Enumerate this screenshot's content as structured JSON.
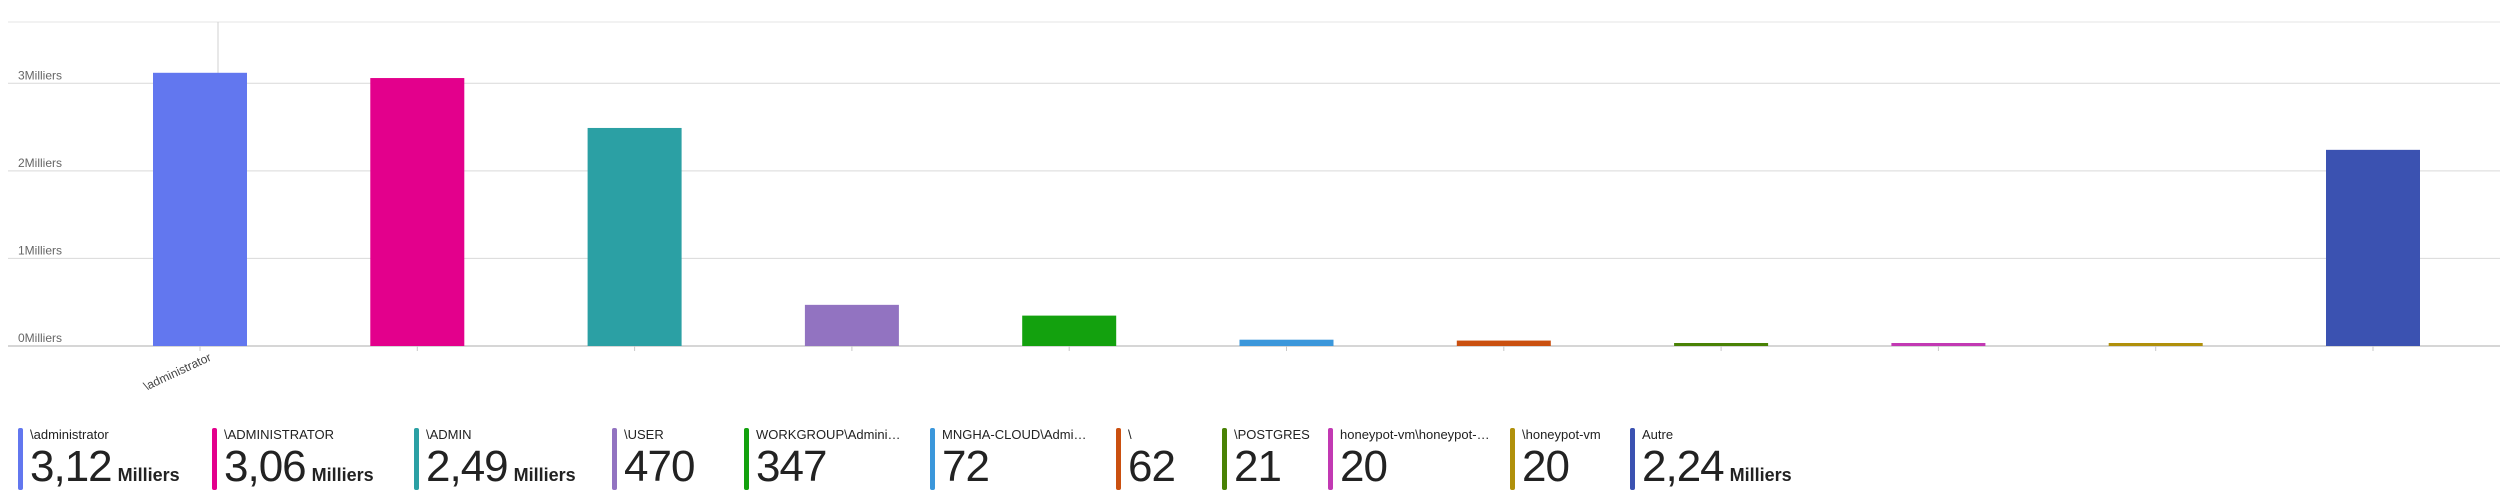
{
  "chart_data": {
    "type": "bar",
    "categories": [
      "\\administrator",
      "\\ADMINISTRATOR",
      "\\ADMIN",
      "\\USER",
      "WORKGROUP\\Administra...",
      "MNGHA-CLOUD\\Adminis...",
      "\\",
      "\\POSTGRES",
      "honeypot-vm\\honeypot-vm",
      "\\honeypot-vm",
      "Autre"
    ],
    "values": [
      3120,
      3060,
      2490,
      470,
      347,
      72,
      62,
      21,
      20,
      20,
      2240
    ],
    "colors": [
      "#6277ef",
      "#e3008c",
      "#2ba0a4",
      "#9273c1",
      "#13a10e",
      "#3b97db",
      "#ca5010",
      "#498205",
      "#c239b3",
      "#b0900b",
      "#3b52b1"
    ],
    "y_ticks": [
      {
        "value": 0,
        "label": "0Milliers"
      },
      {
        "value": 1000,
        "label": "1Milliers"
      },
      {
        "value": 2000,
        "label": "2Milliers"
      },
      {
        "value": 3000,
        "label": "3Milliers"
      }
    ],
    "ylim": [
      0,
      3700
    ],
    "x_tick_label": "\\administrator",
    "grid": true
  },
  "legend": [
    {
      "label": "\\administrator",
      "value": "3,12",
      "unit": "Milliers"
    },
    {
      "label": "\\ADMINISTRATOR",
      "value": "3,06",
      "unit": "Milliers"
    },
    {
      "label": "\\ADMIN",
      "value": "2,49",
      "unit": "Milliers"
    },
    {
      "label": "\\USER",
      "value": "470",
      "unit": ""
    },
    {
      "label": "WORKGROUP\\Administra...",
      "value": "347",
      "unit": ""
    },
    {
      "label": "MNGHA-CLOUD\\Adminis...",
      "value": "72",
      "unit": ""
    },
    {
      "label": "\\",
      "value": "62",
      "unit": ""
    },
    {
      "label": "\\POSTGRES",
      "value": "21",
      "unit": ""
    },
    {
      "label": "honeypot-vm\\honeypot-vm",
      "value": "20",
      "unit": ""
    },
    {
      "label": "\\honeypot-vm",
      "value": "20",
      "unit": ""
    },
    {
      "label": "Autre",
      "value": "2,24",
      "unit": "Milliers"
    }
  ]
}
